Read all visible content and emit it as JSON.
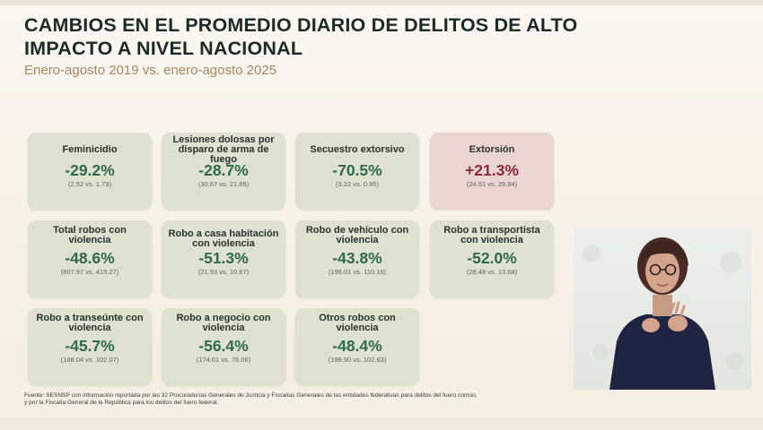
{
  "slide": {
    "title": "CAMBIOS EN EL PROMEDIO DIARIO DE DELITOS DE ALTO IMPACTO A NIVEL NACIONAL",
    "subtitle": "Enero-agosto 2019 vs. enero-agosto 2025",
    "source_line1": "Fuente: SESNSP con información reportada por las 32 Procuradurías Generales de Justicia y Fiscalías Generales de las entidades federativas para delitos del fuero común,",
    "source_line2": "y por la Fiscalía General de la República para los delitos del fuero federal."
  },
  "colors": {
    "decrease_card": "#dfe2d3",
    "increase_card": "#ead5d3",
    "decrease_text": "#2f6b45",
    "increase_text": "#8c2a36"
  },
  "cards": [
    {
      "name": "Feminicidio",
      "pct": "-29.2%",
      "cmp": "(2.52 vs. 1.79)",
      "trend": "down"
    },
    {
      "name": "Lesiones dolosas por disparo de arma de fuego",
      "pct": "-28.7%",
      "cmp": "(30.67 vs. 21.85)",
      "trend": "down"
    },
    {
      "name": "Secuestro extorsivo",
      "pct": "-70.5%",
      "cmp": "(3.22 vs. 0.95)",
      "trend": "down"
    },
    {
      "name": "Extorsión",
      "pct": "+21.3%",
      "cmp": "(24.61 vs. 29.84)",
      "trend": "up"
    },
    {
      "name": "Total robos con violencia",
      "pct": "-48.6%",
      "cmp": "(807.97 vs. 415.27)",
      "trend": "down"
    },
    {
      "name": "Robo a casa habitación con violencia",
      "pct": "-51.3%",
      "cmp": "(21.93 vs. 10.67)",
      "trend": "down"
    },
    {
      "name": "Robo de vehículo con violencia",
      "pct": "-43.8%",
      "cmp": "(196.01 vs. 110.16)",
      "trend": "down"
    },
    {
      "name": "Robo a transportista con violencia",
      "pct": "-52.0%",
      "cmp": "(28.48 vs. 13.68)",
      "trend": "down"
    },
    {
      "name": "Robo a transeúnte con violencia",
      "pct": "-45.7%",
      "cmp": "(188.04 vs. 102.07)",
      "trend": "down"
    },
    {
      "name": "Robo a negocio con violencia",
      "pct": "-56.4%",
      "cmp": "(174.61 vs. 76.06)",
      "trend": "down"
    },
    {
      "name": "Otros robos con violencia",
      "pct": "-48.4%",
      "cmp": "(198.90 vs. 102.63)",
      "trend": "down"
    }
  ]
}
